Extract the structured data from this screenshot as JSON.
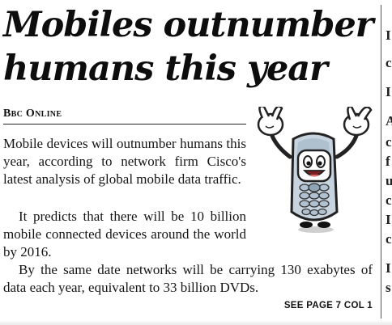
{
  "article": {
    "headline": "Mobiles outnumber humans this year",
    "byline": "Bbc Online",
    "paragraphs": [
      "Mobile devices will outnumber humans this year, according to network firm Cisco's latest analysis of global mobile data traffic.",
      "It predicts that there will be 10 billion mobile connected devices around the world by 2016.",
      "By the same date networks will be carrying 130 exabytes of data each year, equivalent to 33 billion DVDs."
    ],
    "continuation": "SEE PAGE 7 COL 1"
  },
  "illustration": {
    "icon": "cartoon-mobile-phone-icon"
  }
}
